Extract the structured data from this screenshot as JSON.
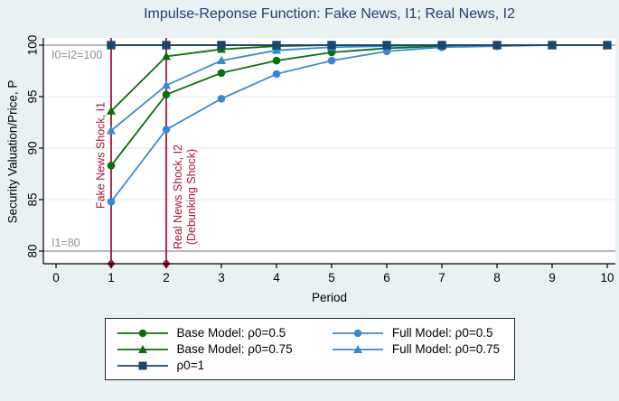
{
  "colors": {
    "background": "#e9f1f3",
    "plot_background": "#ffffff",
    "gridline": "#dfe9f1",
    "axis": "#000000",
    "title_text": "#21406b",
    "reference_gray": "#8f8f8f",
    "event_red": "#ab1239",
    "base_green": "#0a6f0a",
    "full_blue": "#3789d8",
    "rho1_navy": "#1a476f"
  },
  "chart_data": {
    "type": "line",
    "title": "Impulse-Reponse Function: Fake News, I1; Real News, I2",
    "xlabel": "Period",
    "ylabel": "Security Valuation/Price, P",
    "xlim": [
      0,
      10
    ],
    "ylim": [
      79.5,
      101
    ],
    "xticks": [
      0,
      1,
      2,
      3,
      4,
      5,
      6,
      7,
      8,
      9,
      10
    ],
    "yticks": [
      80,
      85,
      90,
      95,
      100
    ],
    "grid": "horizontal-only",
    "legend_position": "bottom",
    "x": [
      1,
      2,
      3,
      4,
      5,
      6,
      7,
      8,
      9,
      10
    ],
    "series": [
      {
        "name": "Base Model: ρ0=0.5",
        "color": "#0a6f0a",
        "marker": "circle",
        "values": [
          88.3,
          95.2,
          97.3,
          98.5,
          99.3,
          99.7,
          99.9,
          100,
          100,
          100
        ]
      },
      {
        "name": "Base Model: ρ0=0.75",
        "color": "#0a6f0a",
        "marker": "triangle",
        "values": [
          93.6,
          98.9,
          99.6,
          99.9,
          100,
          100,
          100,
          100,
          100,
          100
        ]
      },
      {
        "name": "Full Model: ρ0=0.5",
        "color": "#3789d8",
        "marker": "circle",
        "values": [
          84.8,
          91.8,
          94.8,
          97.2,
          98.5,
          99.4,
          99.8,
          99.9,
          100,
          100
        ]
      },
      {
        "name": "Full Model: ρ0=0.75",
        "color": "#3789d8",
        "marker": "triangle",
        "values": [
          91.7,
          96.1,
          98.5,
          99.5,
          99.8,
          99.9,
          100,
          100,
          100,
          100
        ]
      },
      {
        "name": "ρ0=1",
        "color": "#1a476f",
        "marker": "square",
        "values": [
          100,
          100,
          100,
          100,
          100,
          100,
          100,
          100,
          100,
          100
        ]
      }
    ],
    "legend_order": [
      0,
      2,
      1,
      3,
      4
    ],
    "reference_lines": [
      {
        "value": 100,
        "label": "I0=I2=100",
        "color": "#8f8f8f"
      },
      {
        "value": 80,
        "label": "I1=80",
        "color": "#8f8f8f"
      }
    ],
    "event_lines": [
      {
        "x": 1,
        "label": "Fake News Shock, I1",
        "color": "#ab1239",
        "marker": "diamond"
      },
      {
        "x": 2,
        "label": "Real News Shock, I2\n(Debunking Shock)",
        "color": "#ab1239",
        "marker": "diamond"
      }
    ]
  }
}
